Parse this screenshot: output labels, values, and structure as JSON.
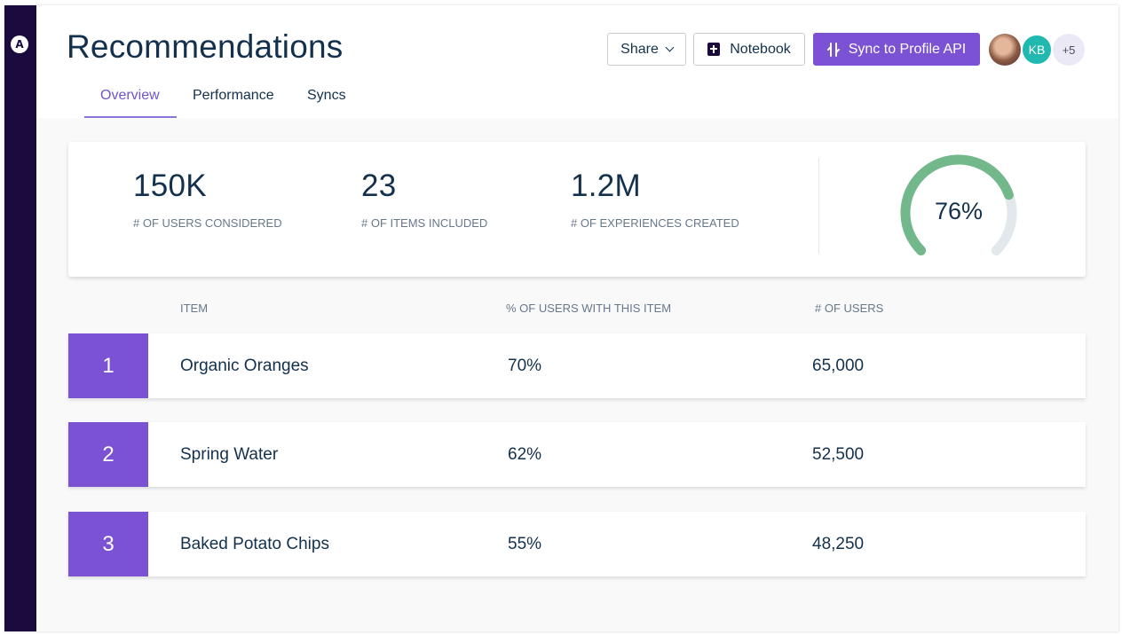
{
  "brand": {
    "logo_letter": "A",
    "accent_color": "#7b52d4",
    "nav_bg": "#1b0a3d"
  },
  "header": {
    "title": "Recommendations",
    "tabs": [
      {
        "label": "Overview",
        "active": true
      },
      {
        "label": "Performance",
        "active": false
      },
      {
        "label": "Syncs",
        "active": false
      }
    ],
    "share_label": "Share",
    "notebook_label": "Notebook",
    "sync_label": "Sync to Profile API",
    "avatars": {
      "kb_initials": "KB",
      "more_count": "+5"
    }
  },
  "stats": {
    "items": [
      {
        "value": "150K",
        "label": "# OF USERS CONSIDERED"
      },
      {
        "value": "23",
        "label": "# OF ITEMS INCLUDED"
      },
      {
        "value": "1.2M",
        "label": "# OF EXPERIENCES CREATED"
      }
    ],
    "gauge": {
      "label": "76%",
      "fraction": 0.76,
      "fill_color": "#72b88b",
      "track_color": "#e3e8ec"
    }
  },
  "table": {
    "headers": {
      "item": "ITEM",
      "percent": "% OF USERS WITH THIS ITEM",
      "users": "# OF USERS"
    },
    "rows": [
      {
        "rank": "1",
        "item": "Organic Oranges",
        "percent": "70%",
        "users": "65,000"
      },
      {
        "rank": "2",
        "item": "Spring Water",
        "percent": "62%",
        "users": "52,500"
      },
      {
        "rank": "3",
        "item": "Baked Potato Chips",
        "percent": "55%",
        "users": "48,250"
      }
    ]
  }
}
